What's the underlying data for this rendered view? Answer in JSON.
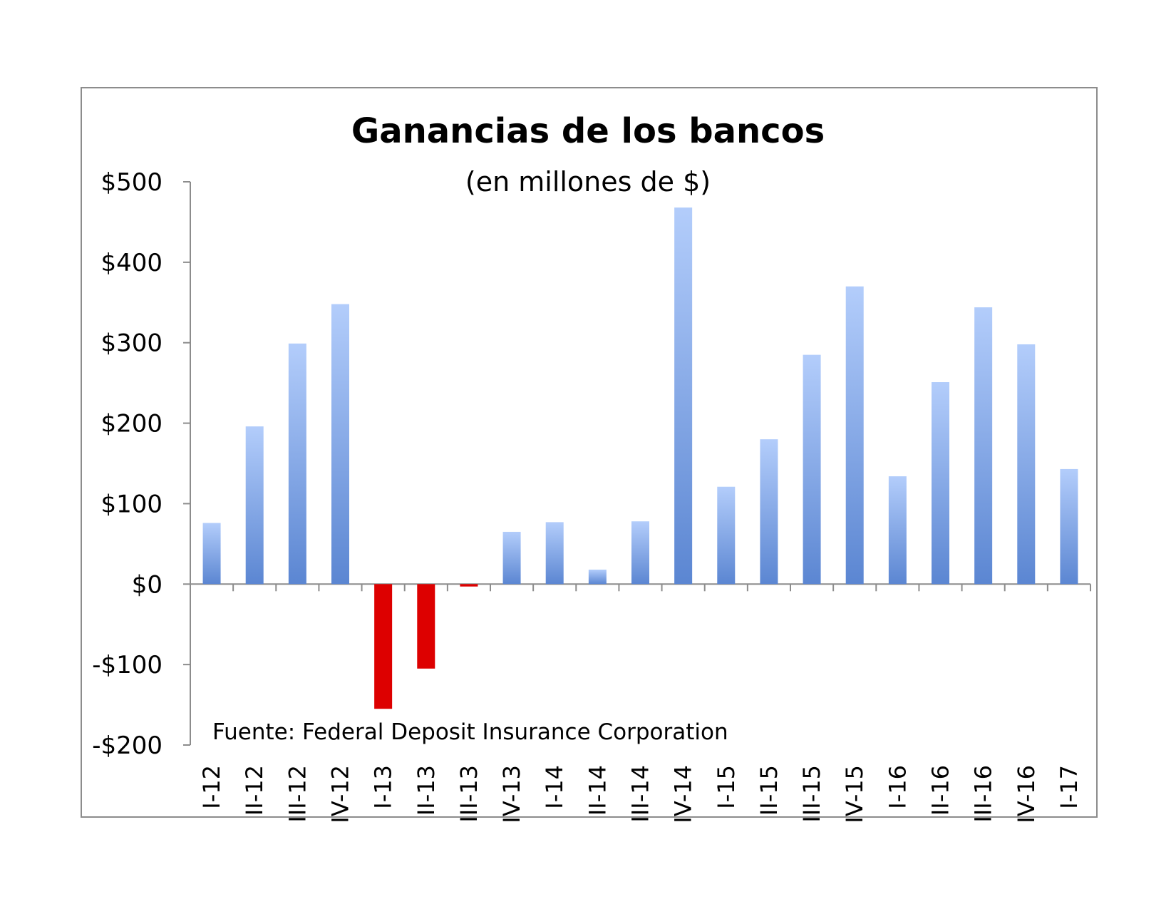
{
  "chart_data": {
    "type": "bar",
    "title": "Ganancias de los bancos",
    "subtitle": "(en millones de $)",
    "xlabel": "",
    "ylabel": "",
    "ylim": [
      -200,
      500
    ],
    "ytick_values": [
      500,
      400,
      300,
      200,
      100,
      0,
      -100,
      -200
    ],
    "ytick_labels": [
      "$500",
      "$400",
      "$300",
      "$200",
      "$100",
      "$0",
      "-$100",
      "-$200"
    ],
    "categories": [
      "I-12",
      "II-12",
      "III-12",
      "IV-12",
      "I-13",
      "II-13",
      "III-13",
      "IV-13",
      "I-14",
      "II-14",
      "III-14",
      "IV-14",
      "I-15",
      "II-15",
      "III-15",
      "IV-15",
      "I-16",
      "II-16",
      "III-16",
      "IV-16",
      "I-17"
    ],
    "values": [
      76,
      196,
      299,
      348,
      -155,
      -105,
      -3,
      65,
      77,
      18,
      78,
      468,
      121,
      180,
      285,
      370,
      134,
      251,
      344,
      298,
      143
    ],
    "grid": false,
    "legend": "none",
    "annotation": "Fuente: Federal Deposit Insurance Corporation",
    "colors": {
      "positive_top": "#b3cdfb",
      "positive_bottom": "#5b86d2",
      "negative": "#dd0000",
      "axis": "#8c8c8c"
    }
  }
}
